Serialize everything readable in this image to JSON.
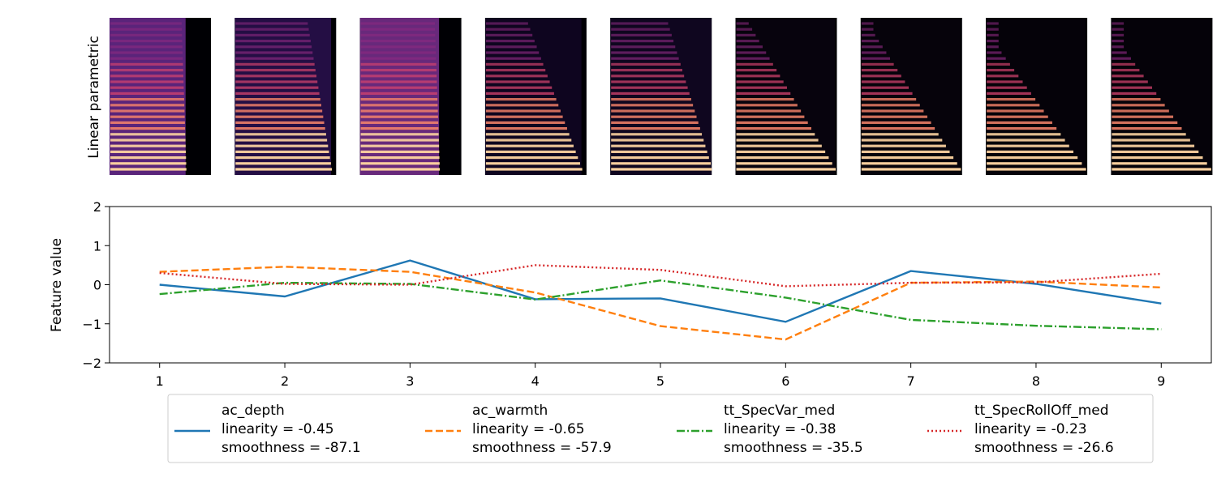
{
  "spectrogram_row": {
    "ylabel": "Linear parametric",
    "panels": [
      {
        "bright_extent": 0.75,
        "harmonic_decay": 0.05,
        "bg_fill": "#6a2a8f"
      },
      {
        "bright_extent": 0.95,
        "harmonic_decay": 0.2,
        "bg_fill": "#2a1150"
      },
      {
        "bright_extent": 0.78,
        "harmonic_decay": 0.05,
        "bg_fill": "#7a3090"
      },
      {
        "bright_extent": 0.95,
        "harmonic_decay": 0.45,
        "bg_fill": "#110624"
      },
      {
        "bright_extent": 1.0,
        "harmonic_decay": 0.35,
        "bg_fill": "#120724"
      },
      {
        "bright_extent": 0.98,
        "harmonic_decay": 0.7,
        "bg_fill": "#08030f"
      },
      {
        "bright_extent": 0.98,
        "harmonic_decay": 0.75,
        "bg_fill": "#07030d"
      },
      {
        "bright_extent": 0.98,
        "harmonic_decay": 0.85,
        "bg_fill": "#06020b"
      },
      {
        "bright_extent": 0.98,
        "harmonic_decay": 0.85,
        "bg_fill": "#06020b"
      }
    ]
  },
  "chart_data": {
    "type": "line",
    "xlabel": "",
    "ylabel": "Feature value",
    "x": [
      1,
      2,
      3,
      4,
      5,
      6,
      7,
      8,
      9
    ],
    "xlim": [
      0.6,
      9.4
    ],
    "ylim": [
      -2,
      2
    ],
    "xticks": [
      "1",
      "2",
      "3",
      "4",
      "5",
      "6",
      "7",
      "8",
      "9"
    ],
    "yticks": [
      "−2",
      "−1",
      "0",
      "1",
      "2"
    ],
    "ytick_values": [
      -2,
      -1,
      0,
      1,
      2
    ],
    "legend_position": "below",
    "series": [
      {
        "name": "ac_depth",
        "linearity_text": "linearity = -0.45",
        "smoothness_text": "smoothness = -87.1",
        "color": "#1f77b4",
        "dash": "",
        "values": [
          0.0,
          -0.3,
          0.62,
          -0.37,
          -0.35,
          -0.95,
          0.35,
          0.02,
          -0.48
        ]
      },
      {
        "name": "ac_warmth",
        "linearity_text": "linearity = -0.65",
        "smoothness_text": "smoothness = -57.9",
        "color": "#ff7f0e",
        "dash": "9,4",
        "values": [
          0.33,
          0.46,
          0.33,
          -0.2,
          -1.06,
          -1.4,
          0.05,
          0.08,
          -0.07
        ]
      },
      {
        "name": "tt_SpecVar_med",
        "linearity_text": "linearity = -0.38",
        "smoothness_text": "smoothness = -35.5",
        "color": "#2ca02c",
        "dash": "10,3,2,3",
        "values": [
          -0.24,
          0.05,
          0.02,
          -0.38,
          0.11,
          -0.33,
          -0.9,
          -1.05,
          -1.14
        ]
      },
      {
        "name": "tt_SpecRollOff_med",
        "linearity_text": "linearity = -0.23",
        "smoothness_text": "smoothness = -26.6",
        "color": "#d62728",
        "dash": "2,3",
        "values": [
          0.3,
          0.02,
          0.0,
          0.5,
          0.38,
          -0.04,
          0.05,
          0.06,
          0.28
        ]
      }
    ]
  }
}
